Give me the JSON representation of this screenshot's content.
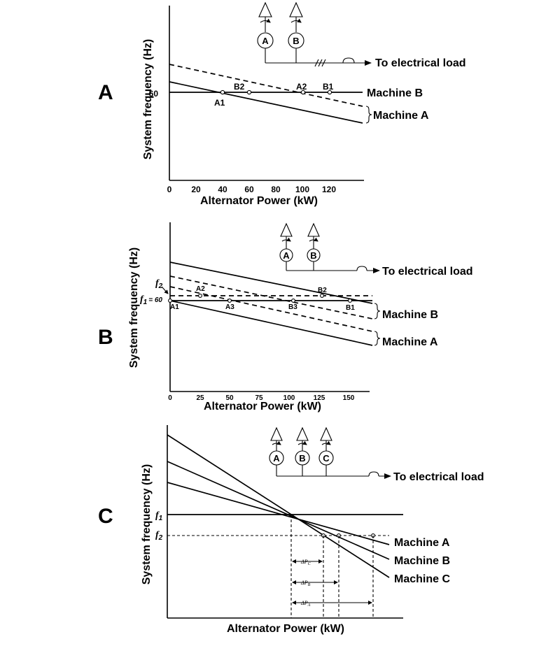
{
  "panels": [
    {
      "letter": "A",
      "y_axis_label": "System frequency (Hz)",
      "x_axis_label": "Alternator Power (kW)",
      "y_tick": "60",
      "x_ticks": [
        "0",
        "20",
        "40",
        "60",
        "80",
        "100",
        "120"
      ],
      "points": [
        "A1",
        "B2",
        "A2",
        "B1"
      ],
      "machines": [
        "Machine B",
        "Machine A"
      ],
      "generators": [
        "A",
        "B"
      ],
      "load_label": "To electrical load"
    },
    {
      "letter": "B",
      "y_axis_label": "System frequency (Hz)",
      "x_axis_label": "Alternator Power (kW)",
      "f2_label": "f",
      "f2_sub": "2",
      "f1_label": "f",
      "f1_sub": "1",
      "f1_value": "= 60",
      "x_ticks": [
        "0",
        "25",
        "50",
        "75",
        "100",
        "125",
        "150"
      ],
      "points": [
        "A1",
        "A2",
        "A3",
        "B3",
        "B2",
        "B1"
      ],
      "machines": [
        "Machine B",
        "Machine A"
      ],
      "generators": [
        "A",
        "B"
      ],
      "load_label": "To electrical load"
    },
    {
      "letter": "C",
      "y_axis_label": "System frequency (Hz)",
      "x_axis_label": "Alternator Power (kW)",
      "f1_label": "f",
      "f1_sub": "1",
      "f2_label": "f",
      "f2_sub": "2",
      "delta_labels": [
        "ΔP",
        "C",
        "ΔP",
        "B",
        "ΔP",
        "A"
      ],
      "machines": [
        "Machine A",
        "Machine B",
        "Machine C"
      ],
      "generators": [
        "A",
        "B",
        "C"
      ],
      "load_label": "To electrical load"
    }
  ]
}
